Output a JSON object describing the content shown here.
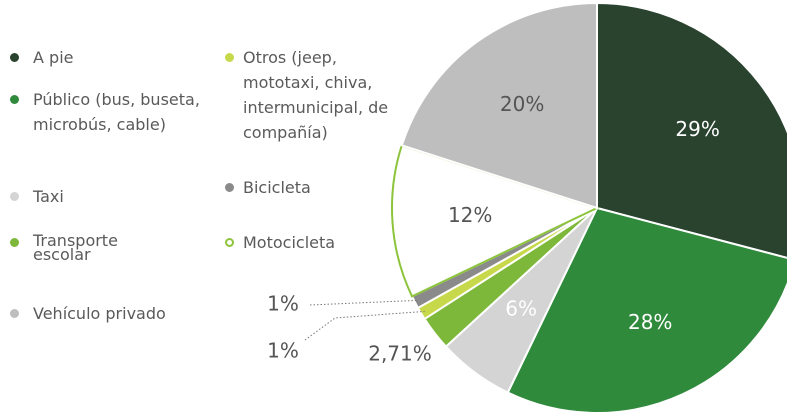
{
  "chart_data": {
    "type": "pie",
    "categories": [
      "A pie",
      "Público (bus, buseta, microbús, cable)",
      "Taxi",
      "Transporte escolar",
      "Otros (jeep, mototaxi, chiva, intermunicipal, de compañía)",
      "Bicicleta",
      "Motocicleta",
      "Vehículo privado"
    ],
    "values": [
      29,
      28,
      6,
      2.71,
      1,
      1,
      12,
      20
    ],
    "value_labels": [
      "29%",
      "28%",
      "6%",
      "2,71%",
      "1%",
      "1%",
      "12%",
      "20%"
    ],
    "colors": [
      "#29432f",
      "#2f8a3b",
      "#d4d4d4",
      "#7db83b",
      "#c7d94b",
      "#8a8a8a",
      "#ffffff",
      "#bebebe"
    ],
    "edge_colors": [
      "#ffffff",
      "#ffffff",
      "#ffffff",
      "#ffffff",
      "#ffffff",
      "#ffffff",
      "#8cc43c",
      "#ffffff"
    ]
  }
}
